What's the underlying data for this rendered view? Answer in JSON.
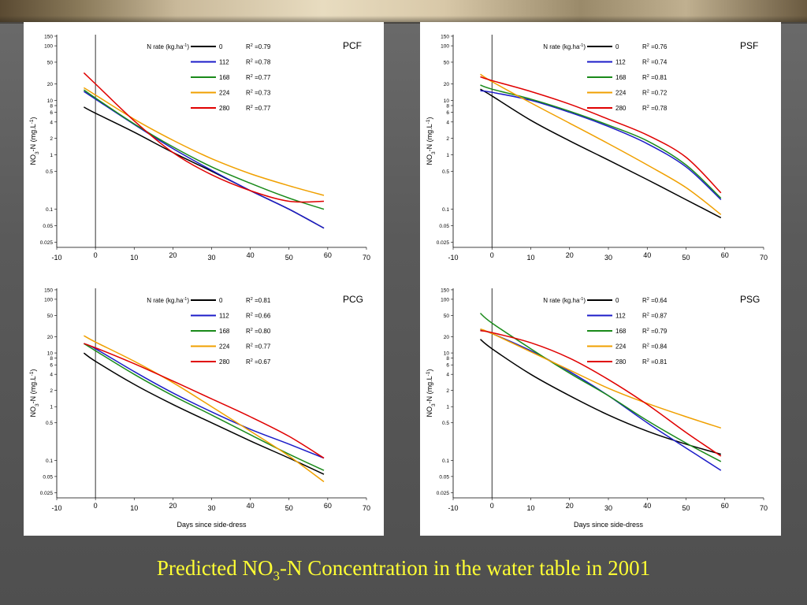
{
  "slide": {
    "title_prefix": "Predicted NO",
    "title_sub": "3",
    "title_suffix": "-N Concentration in the water table in 2001"
  },
  "axes": {
    "ylabel_prefix": "NO",
    "ylabel_sub": "3",
    "ylabel_mid": "-N (mg.L",
    "ylabel_sup": "-1",
    "ylabel_end": ")",
    "xlabel": "Days since side-dress",
    "xticks": [
      -10,
      0,
      10,
      20,
      30,
      40,
      50,
      60,
      70
    ],
    "yticks": [
      0.025,
      0.05,
      0.1,
      0.5,
      1,
      2,
      4,
      6,
      8,
      10,
      20,
      50,
      100,
      150
    ],
    "ylim": [
      0.02,
      160
    ],
    "xlim": [
      -10,
      70
    ],
    "yscale": "log"
  },
  "legend": {
    "title_prefix": "N rate (kg.ha",
    "title_sup": "-1",
    "title_end": ")",
    "r2_prefix": "R",
    "r2_sup": "2",
    "rates": [
      "0",
      "112",
      "168",
      "224",
      "280"
    ]
  },
  "colors": {
    "0": "#000000",
    "112": "#1c1cc8",
    "168": "#1a8a1a",
    "224": "#f0a000",
    "280": "#e00000"
  },
  "chart_data": [
    {
      "type": "line",
      "panel": "PCF",
      "show_xlabel": false,
      "series": [
        {
          "name": "0",
          "r2": "=0.79",
          "x": [
            -3,
            0,
            10,
            20,
            30,
            40,
            50,
            59
          ],
          "y": [
            7.5,
            5.8,
            2.6,
            1.1,
            0.5,
            0.22,
            0.1,
            0.045
          ]
        },
        {
          "name": "112",
          "r2": "=0.78",
          "x": [
            -3,
            0,
            10,
            20,
            30,
            40,
            50,
            59
          ],
          "y": [
            14.5,
            10.5,
            3.6,
            1.3,
            0.52,
            0.22,
            0.1,
            0.045
          ]
        },
        {
          "name": "168",
          "r2": "=0.77",
          "x": [
            -3,
            0,
            10,
            20,
            30,
            40,
            50,
            59
          ],
          "y": [
            15.5,
            11,
            3.7,
            1.4,
            0.6,
            0.3,
            0.16,
            0.1
          ]
        },
        {
          "name": "224",
          "r2": "=0.73",
          "x": [
            -3,
            0,
            10,
            20,
            30,
            40,
            50,
            59
          ],
          "y": [
            17,
            12.5,
            4.5,
            1.85,
            0.85,
            0.45,
            0.27,
            0.18
          ]
        },
        {
          "name": "280",
          "r2": "=0.77",
          "x": [
            -3,
            0,
            10,
            20,
            30,
            40,
            50,
            59
          ],
          "y": [
            32,
            20,
            4.2,
            1.1,
            0.43,
            0.22,
            0.14,
            0.14
          ]
        }
      ]
    },
    {
      "type": "line",
      "panel": "PSF",
      "show_xlabel": false,
      "series": [
        {
          "name": "0",
          "r2": "=0.76",
          "x": [
            -3,
            0,
            10,
            20,
            30,
            40,
            50,
            59
          ],
          "y": [
            16,
            12,
            4.3,
            1.8,
            0.8,
            0.35,
            0.15,
            0.07
          ]
        },
        {
          "name": "112",
          "r2": "=0.74",
          "x": [
            -3,
            0,
            10,
            20,
            30,
            40,
            50,
            59
          ],
          "y": [
            15,
            14,
            10,
            6,
            3.3,
            1.6,
            0.6,
            0.15
          ]
        },
        {
          "name": "168",
          "r2": "=0.81",
          "x": [
            -3,
            0,
            10,
            20,
            30,
            40,
            50,
            59
          ],
          "y": [
            19,
            16,
            10.5,
            6.3,
            3.5,
            1.8,
            0.65,
            0.16
          ]
        },
        {
          "name": "224",
          "r2": "=0.72",
          "x": [
            -3,
            0,
            10,
            20,
            30,
            40,
            50,
            59
          ],
          "y": [
            30,
            22,
            9,
            3.8,
            1.6,
            0.65,
            0.25,
            0.08
          ]
        },
        {
          "name": "280",
          "r2": "=0.78",
          "x": [
            -3,
            0,
            10,
            20,
            30,
            40,
            50,
            59
          ],
          "y": [
            27,
            23,
            14.5,
            8.5,
            4.5,
            2.3,
            0.9,
            0.2
          ]
        }
      ]
    },
    {
      "type": "line",
      "panel": "PCG",
      "show_xlabel": true,
      "series": [
        {
          "name": "0",
          "r2": "=0.81",
          "x": [
            -3,
            0,
            10,
            20,
            30,
            40,
            50,
            59
          ],
          "y": [
            10,
            7,
            2.6,
            1.1,
            0.5,
            0.23,
            0.11,
            0.055
          ]
        },
        {
          "name": "112",
          "r2": "=0.66",
          "x": [
            -3,
            0,
            10,
            20,
            30,
            40,
            50,
            59
          ],
          "y": [
            15,
            12,
            4.5,
            1.8,
            0.8,
            0.38,
            0.2,
            0.11
          ]
        },
        {
          "name": "168",
          "r2": "=0.80",
          "x": [
            -3,
            0,
            10,
            20,
            30,
            40,
            50,
            59
          ],
          "y": [
            15,
            11,
            4,
            1.6,
            0.7,
            0.3,
            0.13,
            0.065
          ]
        },
        {
          "name": "224",
          "r2": "=0.77",
          "x": [
            -3,
            0,
            10,
            20,
            30,
            40,
            50,
            59
          ],
          "y": [
            21,
            16,
            7,
            2.8,
            1,
            0.35,
            0.12,
            0.04
          ]
        },
        {
          "name": "280",
          "r2": "=0.67",
          "x": [
            -3,
            0,
            10,
            20,
            30,
            40,
            50,
            59
          ],
          "y": [
            15,
            12.5,
            6.3,
            3,
            1.4,
            0.65,
            0.28,
            0.11
          ]
        }
      ]
    },
    {
      "type": "line",
      "panel": "PSG",
      "show_xlabel": true,
      "series": [
        {
          "name": "0",
          "r2": "=0.64",
          "x": [
            -3,
            0,
            10,
            20,
            30,
            40,
            50,
            59
          ],
          "y": [
            18,
            12,
            4,
            1.6,
            0.7,
            0.35,
            0.2,
            0.13
          ]
        },
        {
          "name": "112",
          "r2": "=0.87",
          "x": [
            -3,
            0,
            10,
            20,
            30,
            40,
            50,
            59
          ],
          "y": [
            27,
            23,
            11,
            4.5,
            1.6,
            0.5,
            0.17,
            0.065
          ]
        },
        {
          "name": "168",
          "r2": "=0.79",
          "x": [
            -3,
            0,
            10,
            20,
            30,
            40,
            50,
            59
          ],
          "y": [
            55,
            36,
            12,
            4.2,
            1.6,
            0.55,
            0.21,
            0.095
          ]
        },
        {
          "name": "224",
          "r2": "=0.84",
          "x": [
            -3,
            0,
            10,
            20,
            30,
            40,
            50,
            59
          ],
          "y": [
            28,
            23,
            10.5,
            4.8,
            2.2,
            1.15,
            0.65,
            0.4
          ]
        },
        {
          "name": "280",
          "r2": "=0.81",
          "x": [
            -3,
            0,
            10,
            20,
            30,
            40,
            50,
            59
          ],
          "y": [
            26,
            24,
            15.5,
            8,
            3.2,
            1.1,
            0.33,
            0.12
          ]
        }
      ]
    }
  ]
}
